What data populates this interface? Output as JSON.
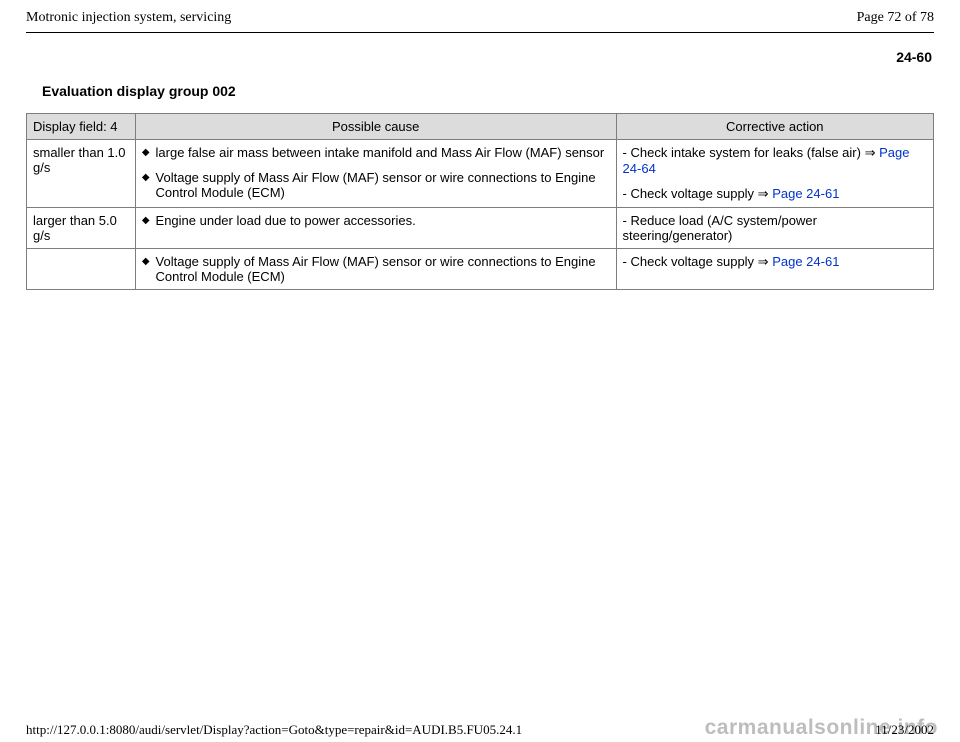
{
  "header": {
    "title": "Motronic injection system, servicing",
    "page_counter": "Page 72 of 78"
  },
  "page_num_sub": "24-60",
  "section_title": "Evaluation display group 002",
  "table": {
    "type": "table",
    "header_bg": "#dcdcdc",
    "border_color": "#7d7d7d",
    "columns": {
      "display": "Display field: 4",
      "cause": "Possible cause",
      "action": "Corrective action"
    },
    "rows": [
      {
        "display": "smaller than 1.0 g/s",
        "causes": [
          "large false air mass between intake manifold and Mass Air Flow (MAF) sensor",
          "Voltage supply of Mass Air Flow (MAF) sensor or wire connections to Engine Control Module (ECM)"
        ],
        "actions": [
          {
            "prefix": "- Check intake system for leaks (false air)  ",
            "link": "Page 24-64"
          },
          {
            "prefix": "- Check voltage supply  ",
            "link": "Page 24-61"
          }
        ]
      },
      {
        "display": "larger than 5.0 g/s",
        "causes": [
          "Engine under load due to power accessories."
        ],
        "actions": [
          {
            "prefix": "- Reduce load (A/C system/power steering/generator)",
            "link": ""
          }
        ]
      },
      {
        "display": "",
        "causes": [
          "Voltage supply of Mass Air Flow (MAF) sensor or wire connections to Engine Control Module (ECM)"
        ],
        "actions": [
          {
            "prefix": "- Check voltage supply  ",
            "link": "Page 24-61"
          }
        ]
      }
    ]
  },
  "footer": {
    "url": "http://127.0.0.1:8080/audi/servlet/Display?action=Goto&type=repair&id=AUDI.B5.FU05.24.1",
    "date": "11/23/2002"
  },
  "watermark": "carmanualsonline.info",
  "glyphs": {
    "bullet": "◆",
    "arrow": "⇒"
  },
  "style": {
    "link_color": "#0033cc",
    "watermark_color": "#bdbdbd",
    "body_font_size": 13,
    "header_font_family": "Times New Roman"
  }
}
